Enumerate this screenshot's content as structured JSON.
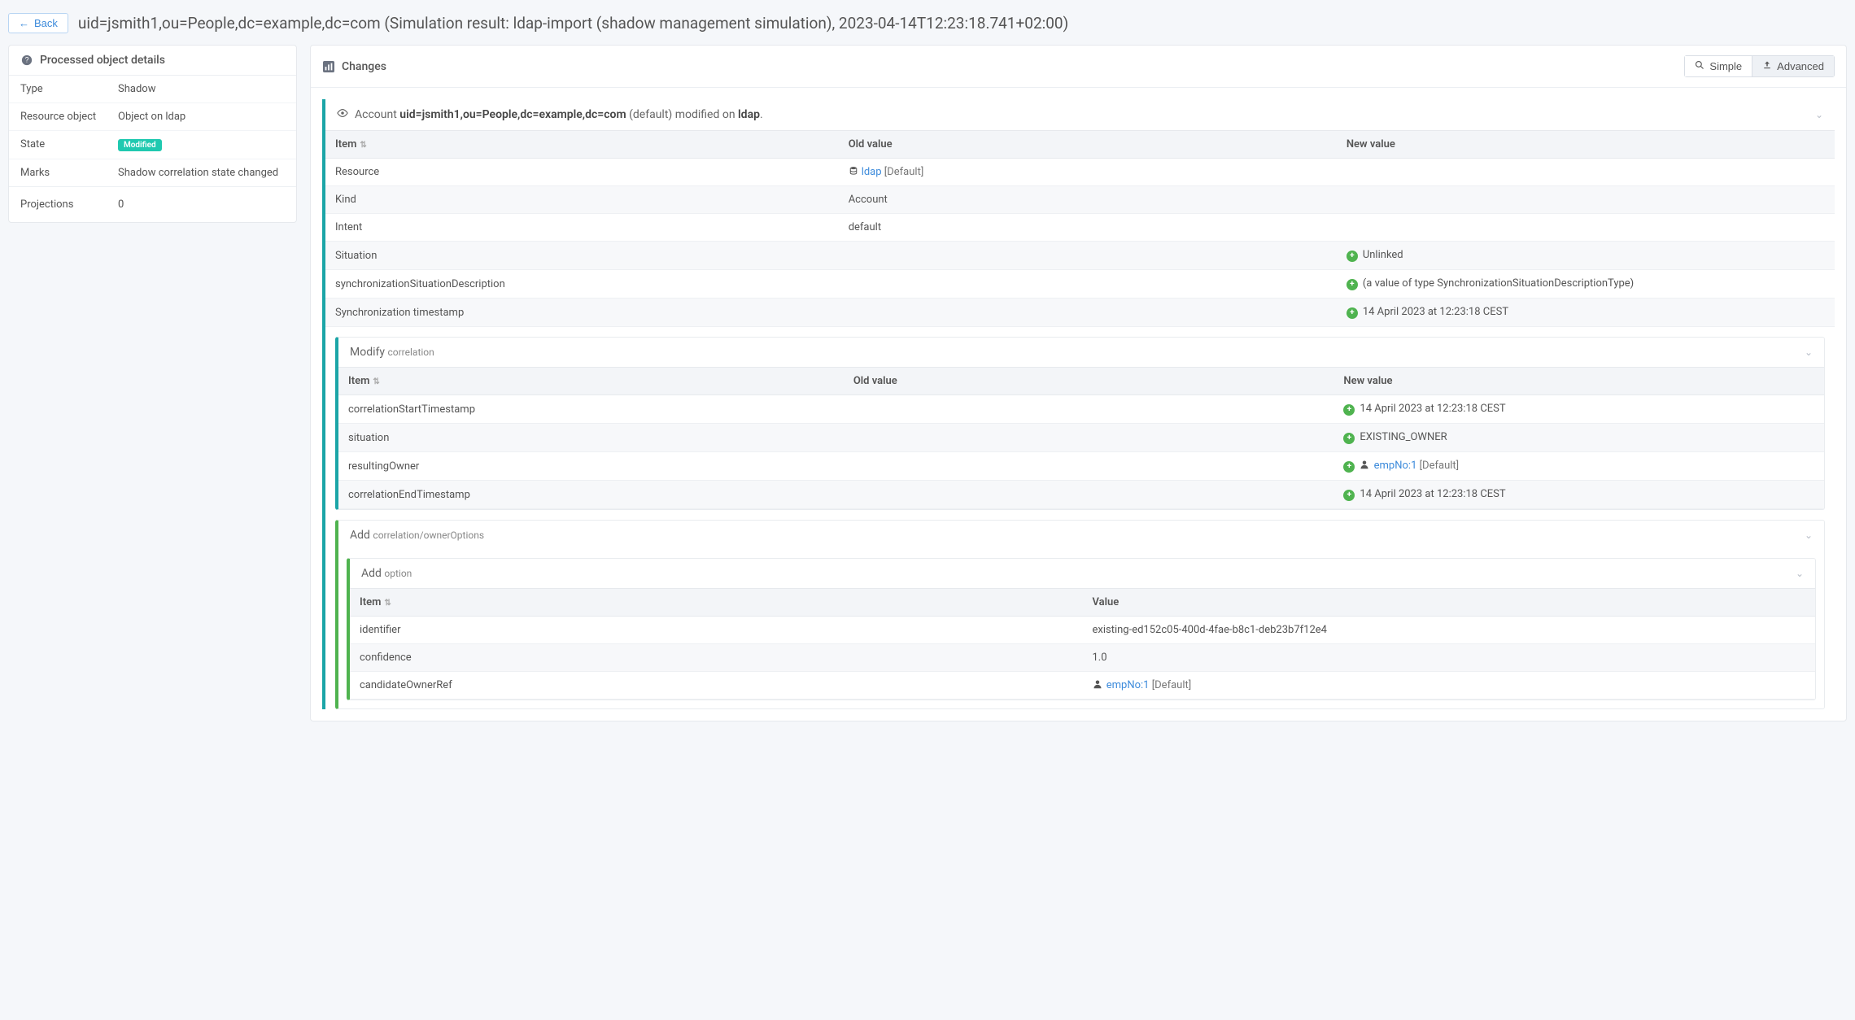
{
  "header": {
    "back_label": "Back",
    "title": "uid=jsmith1,ou=People,dc=example,dc=com (Simulation result: ldap-import (shadow management simulation), 2023-04-14T12:23:18.741+02:00)"
  },
  "details_panel": {
    "title": "Processed object details",
    "rows": [
      {
        "key": "Type",
        "value": "Shadow",
        "badge": false
      },
      {
        "key": "Resource object",
        "value": "Object on ldap",
        "badge": false
      },
      {
        "key": "State",
        "value": "Modified",
        "badge": true
      },
      {
        "key": "Marks",
        "value": "Shadow correlation state changed",
        "badge": false
      }
    ],
    "projections_key": "Projections",
    "projections_val": "0"
  },
  "changes_panel": {
    "title": "Changes",
    "btn_simple": "Simple",
    "btn_advanced": "Advanced"
  },
  "delta": {
    "type_label": "Account ",
    "dn": "uid=jsmith1,ou=People,dc=example,dc=com",
    "suffix_default": " (default) modified on ",
    "resource_name": "ldap",
    "trailing": ".",
    "headers": {
      "item": "Item",
      "old": "Old value",
      "new": "New value"
    },
    "rows": [
      {
        "item": "Resource",
        "old_link": "ldap",
        "old_suffix": " [Default]",
        "old_icon": "db",
        "stripe": false
      },
      {
        "item": "Kind",
        "old_plain": "Account",
        "stripe": true
      },
      {
        "item": "Intent",
        "old_plain": "default",
        "stripe": false
      },
      {
        "item": "Situation",
        "new_plus": "Unlinked",
        "stripe": true
      },
      {
        "item": "synchronizationSituationDescription",
        "new_plus": "(a value of type SynchronizationSituationDescriptionType)",
        "stripe": false
      },
      {
        "item": "Synchronization timestamp",
        "new_plus": "14 April 2023 at 12:23:18 CEST",
        "stripe": true
      }
    ]
  },
  "modify_block": {
    "title": "Modify ",
    "subtitle": "correlation",
    "headers": {
      "item": "Item",
      "old": "Old value",
      "new": "New value"
    },
    "rows": [
      {
        "item": "correlationStartTimestamp",
        "new_plus": "14 April 2023 at 12:23:18 CEST",
        "stripe": false
      },
      {
        "item": "situation",
        "new_plus": "EXISTING_OWNER",
        "stripe": true
      },
      {
        "item": "resultingOwner",
        "new_link": "empNo:1",
        "new_suffix": " [Default]",
        "new_icon": "user",
        "stripe": false
      },
      {
        "item": "correlationEndTimestamp",
        "new_plus": "14 April 2023 at 12:23:18 CEST",
        "stripe": true
      }
    ]
  },
  "add_block": {
    "title": "Add ",
    "subtitle": "correlation/ownerOptions",
    "inner_title": "Add ",
    "inner_subtitle": "option",
    "headers": {
      "item": "Item",
      "value": "Value"
    },
    "rows": [
      {
        "item": "identifier",
        "value_plain": "existing-ed152c05-400d-4fae-b8c1-deb23b7f12e4",
        "stripe": false
      },
      {
        "item": "confidence",
        "value_plain": "1.0",
        "stripe": true
      },
      {
        "item": "candidateOwnerRef",
        "value_link": "empNo:1",
        "value_suffix": " [Default]",
        "value_icon": "user",
        "stripe": false
      }
    ]
  }
}
